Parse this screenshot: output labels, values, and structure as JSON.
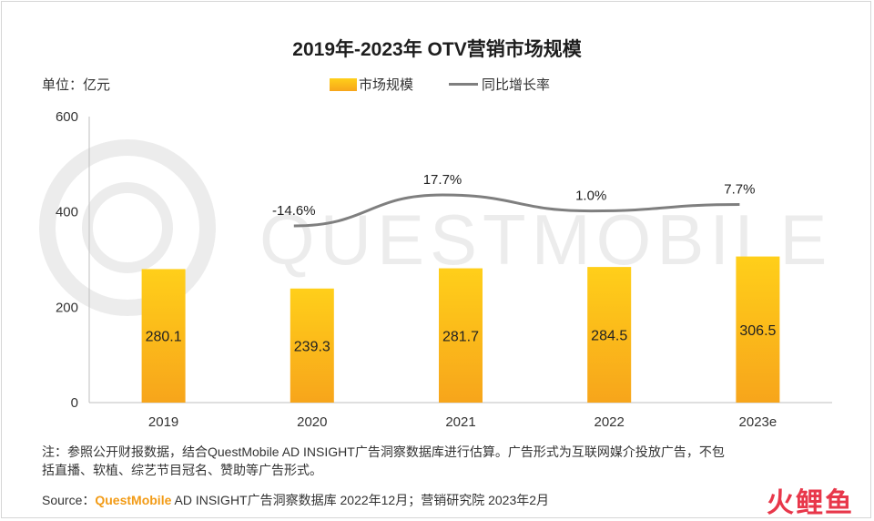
{
  "title": "2019年-2023年 OTV营销市场规模",
  "unit_label": "单位：亿元",
  "legend": {
    "bar_label": "市场规模",
    "line_label": "同比增长率"
  },
  "watermark": "QUESTMOBILE",
  "chart_data": {
    "type": "bar",
    "categories": [
      "2019",
      "2020",
      "2021",
      "2022",
      "2023e"
    ],
    "ylim": [
      0,
      600
    ],
    "yticks": [
      "0",
      "200",
      "400",
      "600"
    ],
    "ylabel": "",
    "xlabel": "",
    "grid": false,
    "legend_placement": "top-center",
    "series": [
      {
        "name": "市场规模",
        "kind": "bar",
        "values": [
          280.1,
          239.3,
          281.7,
          284.5,
          306.5
        ],
        "labels": [
          "280.1",
          "239.3",
          "281.7",
          "284.5",
          "306.5"
        ],
        "color_top": "#ffcf1a",
        "color_bottom": "#f7a51b"
      },
      {
        "name": "同比增长率",
        "kind": "line",
        "categories": [
          "2020",
          "2021",
          "2022",
          "2023e"
        ],
        "labels": [
          "-14.6%",
          "17.7%",
          "1.0%",
          "7.7%"
        ],
        "color": "#7f7f7f"
      }
    ]
  },
  "note_line1": "注：参照公开财报数据，结合QuestMobile AD INSIGHT广告洞察数据库进行估算。广告形式为互联网媒介投放广告，不包",
  "note_line2": "括直播、软植、综艺节目冠名、赞助等广告形式。",
  "source": {
    "prefix": "Source：",
    "brand": "QuestMobile",
    "rest": " AD INSIGHT广告洞察数据库 2022年12月；营销研究院 2023年2月"
  },
  "logo": {
    "part1": "火",
    "part2": "鲤鱼"
  }
}
